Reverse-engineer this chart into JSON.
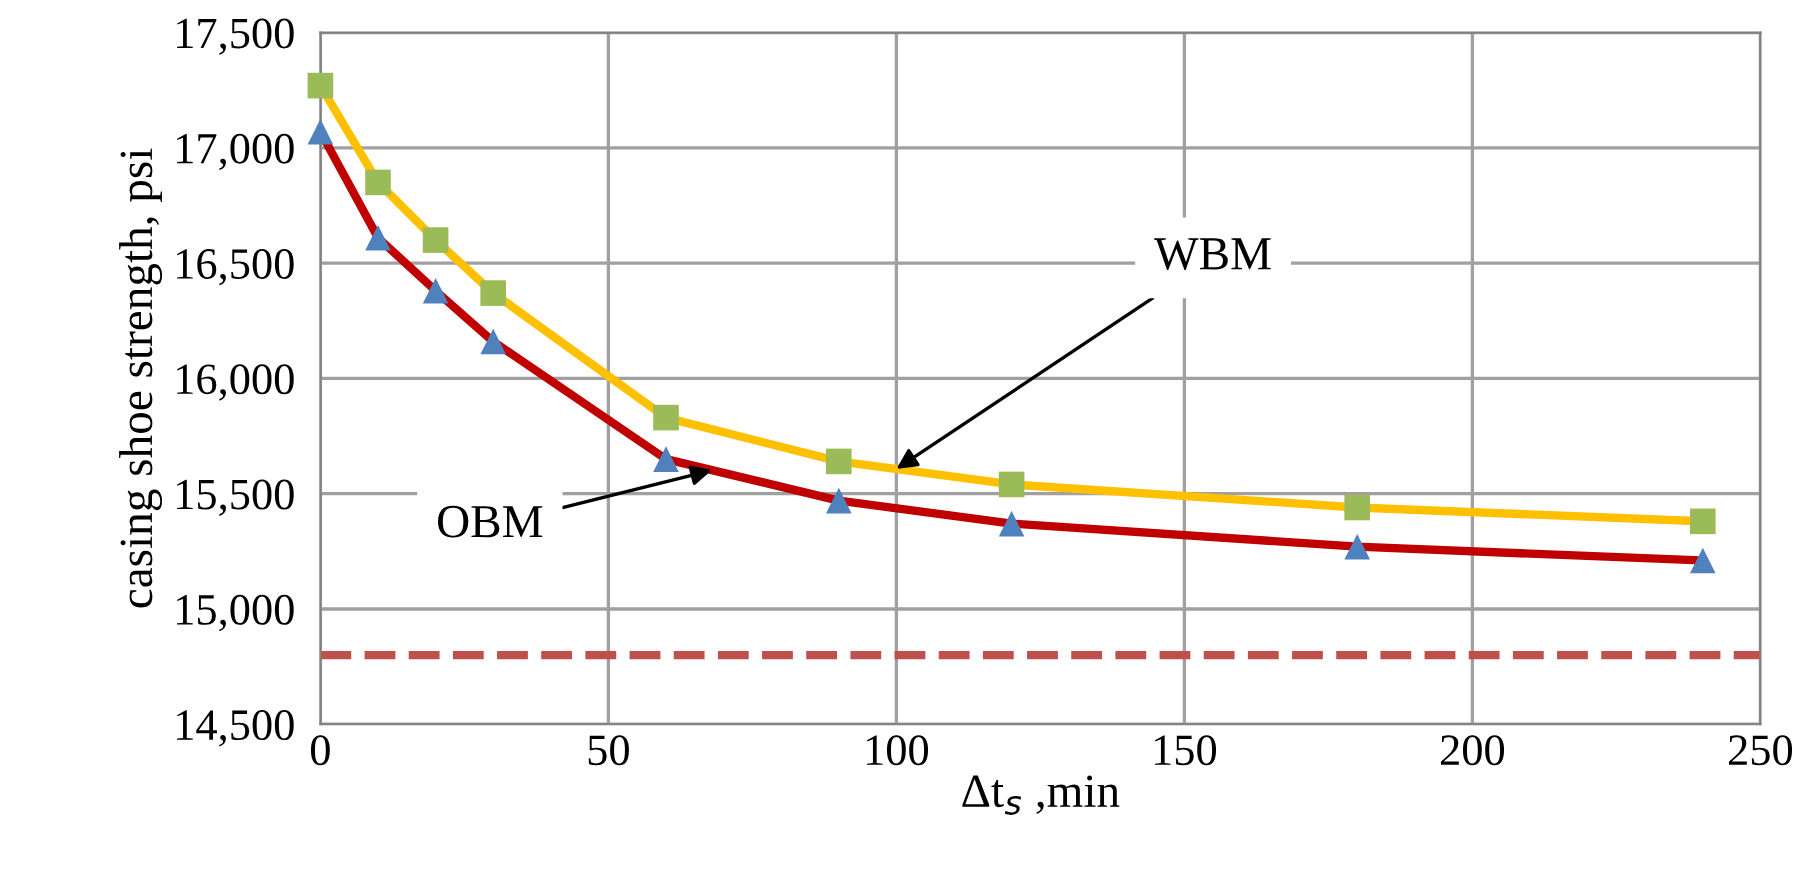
{
  "chart_data": {
    "type": "line",
    "xlabel": "Δt$_{s}$ ,min",
    "ylabel": "casing shoe strength, psi",
    "x": [
      0,
      10,
      20,
      30,
      60,
      90,
      120,
      180,
      240
    ],
    "series": [
      {
        "color": "#ffc000",
        "marker": "square",
        "colors": [
          "#9bbb59",
          "#9bbb59",
          "#9bbb59",
          "#9bbb59",
          "#9bbb59",
          "#9bbb59",
          "#9bbb59",
          "#9bbb59",
          "#9bbb59"
        ],
        "values": [
          17270,
          16850,
          16600,
          16370,
          15830,
          15640,
          15540,
          15440,
          15380
        ]
      },
      {
        "color": "#c00000",
        "marker": "triangle",
        "colors": [
          "#4f81bd",
          "#4f81bd",
          "#4f81bd",
          "#4f81bd",
          "#4f81bd",
          "#4f81bd",
          "#4f81bd",
          "#4f81bd",
          "#4f81bd"
        ],
        "values": [
          17070,
          16610,
          16380,
          16160,
          15650,
          15470,
          15370,
          15270,
          15210
        ]
      }
    ],
    "xlim": [
      0,
      250
    ],
    "xticks": [
      0,
      50,
      100,
      150,
      200,
      250
    ],
    "ylim": [
      14500,
      17500
    ],
    "yticks": [
      {
        "value": 14500,
        "label": "14,500"
      },
      {
        "value": 15000,
        "label": "15,000"
      },
      {
        "value": 15500,
        "label": "15,500"
      },
      {
        "value": 16000,
        "label": "16,000"
      },
      {
        "value": 16500,
        "label": "16,500"
      },
      {
        "value": 17000,
        "label": "17,000"
      },
      {
        "value": 17500,
        "label": "17,500"
      }
    ],
    "grid": true,
    "line_style": "solid",
    "ref_lines": [
      {
        "axis": "y",
        "value": 14800,
        "color": "#c0504d",
        "line_style": "dashed"
      }
    ],
    "annotations": [
      {
        "text": "WBM",
        "x": 100,
        "y": 15607
      },
      {
        "text": "OBM",
        "x": 68,
        "y": 15602
      }
    ]
  }
}
